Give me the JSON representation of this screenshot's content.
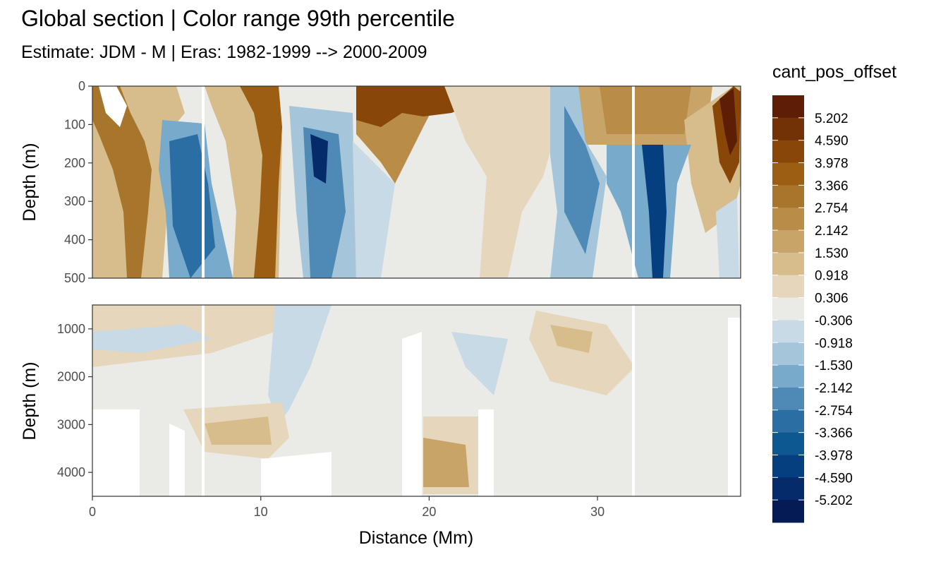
{
  "title": "Global section | Color range 99th percentile",
  "subtitle": "Estimate: JDM - M | Eras: 1982-1999 --> 2000-2009",
  "chart_data": {
    "type": "heatmap",
    "title": "Global section | Color range 99th percentile",
    "subtitle": "Estimate: JDM - M | Eras: 1982-1999 --> 2000-2009",
    "xlabel": "Distance (Mm)",
    "xlim": [
      0,
      38.5
    ],
    "xticks": [
      "0",
      "10",
      "20",
      "30"
    ],
    "grid": true,
    "panels": [
      {
        "name": "upper",
        "ylabel": "Depth (m)",
        "ylim": [
          0,
          500
        ],
        "y_reversed": true,
        "yticks": [
          "0",
          "100",
          "200",
          "300",
          "400",
          "500"
        ]
      },
      {
        "name": "lower",
        "ylabel": "Depth (m)",
        "ylim": [
          500,
          4500
        ],
        "y_reversed": true,
        "yticks": [
          "1000",
          "2000",
          "3000",
          "4000"
        ]
      }
    ],
    "legend": {
      "title": "cant_pos_offset",
      "placement": "right",
      "breaks": [
        "5.202",
        "4.590",
        "3.978",
        "3.366",
        "2.754",
        "2.142",
        "1.530",
        "0.918",
        "0.306",
        "-0.306",
        "-0.918",
        "-1.530",
        "-2.142",
        "-2.754",
        "-3.366",
        "-3.978",
        "-4.590",
        "-5.202"
      ],
      "colors": [
        "#5e1e05",
        "#723206",
        "#884708",
        "#9b5e12",
        "#a8752c",
        "#b98d48",
        "#c9a469",
        "#d7bd8c",
        "#e5d6bc",
        "#eaeae6",
        "#c8dae6",
        "#a5c6da",
        "#78aacb",
        "#4f8ab6",
        "#2a6ea3",
        "#0e5892",
        "#063f7f",
        "#062b6b",
        "#051b56"
      ]
    }
  }
}
